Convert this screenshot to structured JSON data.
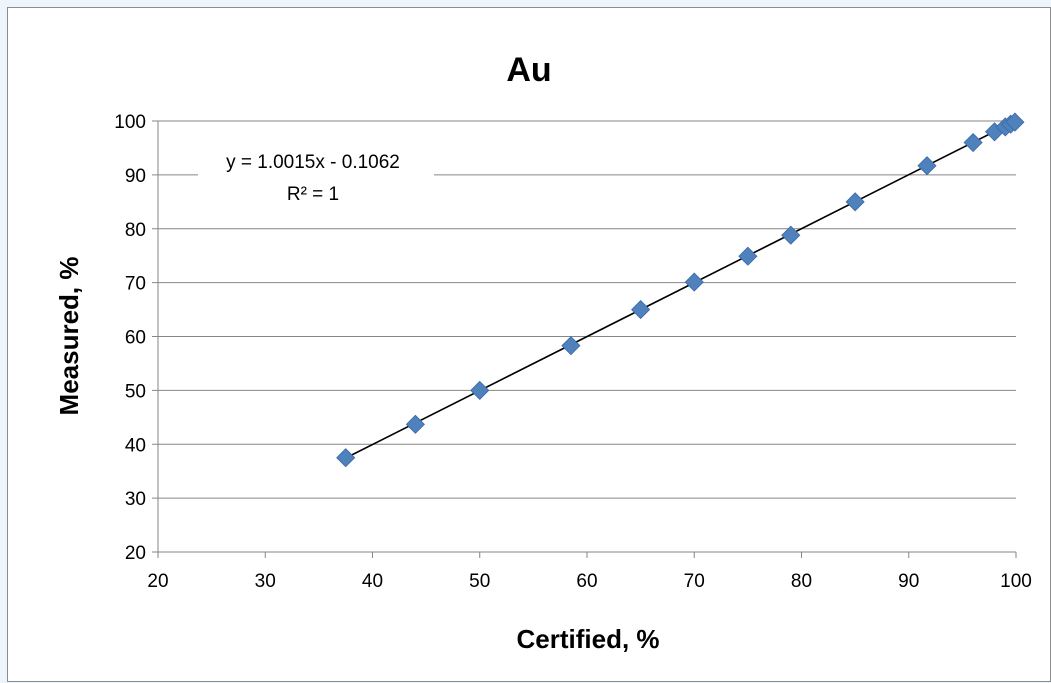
{
  "chart_data": {
    "type": "scatter",
    "title": "Au",
    "xlabel": "Certified, %",
    "ylabel": "Measured, %",
    "xlim": [
      20,
      100
    ],
    "ylim": [
      20,
      100
    ],
    "x_ticks": [
      "20",
      "30",
      "40",
      "50",
      "60",
      "70",
      "80",
      "90",
      "100"
    ],
    "y_ticks": [
      "20",
      "30",
      "40",
      "50",
      "60",
      "70",
      "80",
      "90",
      "100"
    ],
    "grid": "horizontal",
    "legend": "none",
    "marker": "diamond",
    "colors": {
      "marker": "#4f81bd",
      "trendline": "#000000",
      "gridline": "#868686"
    },
    "series": [
      {
        "x": [
          37.5,
          44,
          50,
          58.5,
          65,
          70,
          75,
          79,
          85,
          91.7,
          96,
          98,
          99,
          99.5,
          99.9
        ],
        "y": [
          37.5,
          43.7,
          50,
          58.3,
          65,
          70.1,
          74.9,
          78.8,
          85,
          91.7,
          96,
          98,
          98.9,
          99.4,
          99.8
        ]
      }
    ],
    "trendline": {
      "type": "linear",
      "slope": 1.0015,
      "intercept": -0.1062,
      "x_range": [
        37.5,
        100
      ],
      "equation": "y = 1.0015x - 0.1062",
      "r_squared": "R² = 1"
    }
  }
}
